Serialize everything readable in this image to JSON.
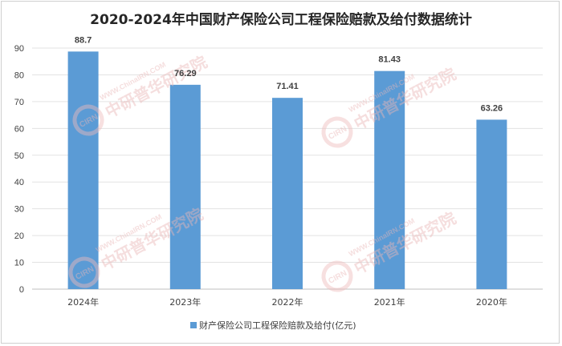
{
  "chart_data": {
    "type": "bar",
    "title": "2020-2024年中国财产保险公司工程保险赔款及给付数据统计",
    "categories": [
      "2024年",
      "2023年",
      "2022年",
      "2021年",
      "2020年"
    ],
    "series": [
      {
        "name": "财产保险公司工程保险赔款及给付(亿元)",
        "values": [
          88.7,
          76.29,
          71.41,
          81.43,
          63.26
        ],
        "value_labels": [
          "88.7",
          "76.29",
          "71.41",
          "81.43",
          "63.26"
        ]
      }
    ],
    "ylim": [
      0,
      90
    ],
    "yticks": [
      0,
      10,
      20,
      30,
      40,
      50,
      60,
      70,
      80,
      90
    ],
    "grid": true,
    "legend_position": "bottom",
    "color": "#5b9bd5"
  },
  "watermark": {
    "brand": "CIRN",
    "url": "WWW.ChinaIRN.COM",
    "name": "中研普华研究院"
  }
}
